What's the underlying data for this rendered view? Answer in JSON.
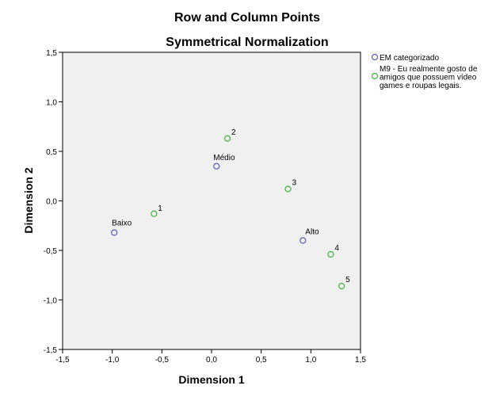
{
  "chart_data": {
    "type": "scatter",
    "title": "Row and Column Points",
    "subtitle": "Symmetrical Normalization",
    "xlabel": "Dimension 1",
    "ylabel": "Dimension 2",
    "xlim": [
      -1.5,
      1.5
    ],
    "ylim": [
      -1.5,
      1.5
    ],
    "xticks": [
      "-1,5",
      "-1,0",
      "-0,5",
      "0,0",
      "0,5",
      "1,0",
      "1,5"
    ],
    "yticks": [
      "1,5",
      "1,0",
      "0,5",
      "0,0",
      "-0,5",
      "-1,0",
      "-1,5"
    ],
    "grid": false,
    "legend_position": "right",
    "series": [
      {
        "name": "EM categorizado",
        "color": "#5a5ab4",
        "points": [
          {
            "label": "Baixo",
            "x": -0.98,
            "y": -0.32
          },
          {
            "label": "Médio",
            "x": 0.05,
            "y": 0.35
          },
          {
            "label": "Alto",
            "x": 0.92,
            "y": -0.4
          }
        ]
      },
      {
        "name_lines": [
          "M9 - Eu realmente gosto de",
          "amigos que possuem vídeo",
          "games e roupas legais."
        ],
        "color": "#3cb43c",
        "points": [
          {
            "label": "1",
            "x": -0.58,
            "y": -0.13
          },
          {
            "label": "2",
            "x": 0.16,
            "y": 0.63
          },
          {
            "label": "3",
            "x": 0.77,
            "y": 0.12
          },
          {
            "label": "4",
            "x": 1.2,
            "y": -0.54
          },
          {
            "label": "5",
            "x": 1.31,
            "y": -0.86
          }
        ]
      }
    ]
  }
}
